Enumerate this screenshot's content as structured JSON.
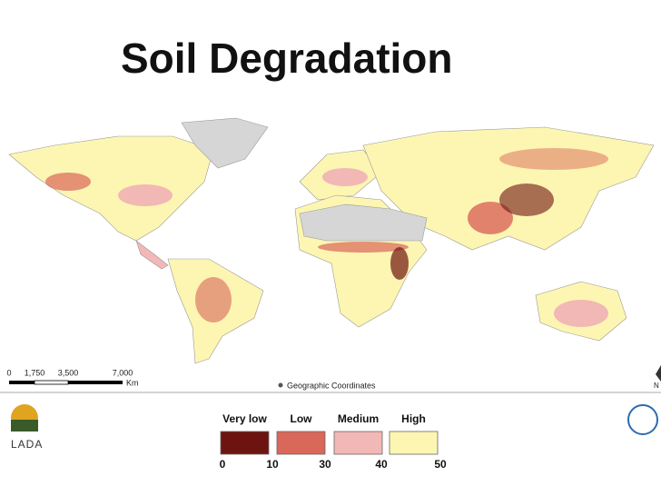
{
  "title": "Soil Degradation",
  "map": {
    "scale_bar": {
      "ticks": [
        "0",
        "1,750",
        "3,500",
        "7,000"
      ],
      "unit": "Km"
    },
    "coordinates_note": "Geographic Coordinates",
    "north_label": "N"
  },
  "logos": {
    "left": "LADA"
  },
  "legend": {
    "classes": [
      {
        "name": "Very low",
        "color": "#6e1410"
      },
      {
        "name": "Low",
        "color": "#d9675a"
      },
      {
        "name": "Medium",
        "color": "#f2b8b5"
      },
      {
        "name": "High",
        "color": "#fdf6b2"
      }
    ],
    "breaks": [
      0,
      10,
      30,
      40,
      50
    ]
  }
}
